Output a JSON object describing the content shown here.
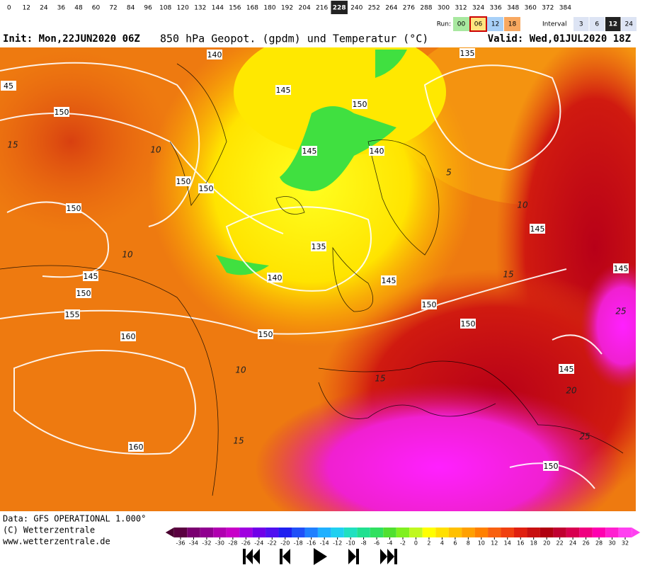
{
  "hours": {
    "items": [
      0,
      12,
      24,
      36,
      48,
      60,
      72,
      84,
      96,
      108,
      120,
      132,
      144,
      156,
      168,
      180,
      192,
      204,
      216,
      228,
      240,
      252,
      264,
      276,
      288,
      300,
      312,
      324,
      336,
      348,
      360,
      372,
      384
    ],
    "selected": 228
  },
  "run": {
    "label": "Run:",
    "options": [
      "00",
      "06",
      "12",
      "18"
    ],
    "selected": "06"
  },
  "interval": {
    "label": "Interval",
    "options": [
      3,
      6,
      12,
      24
    ],
    "selected": 12
  },
  "header": {
    "init": "Init: Mon,22JUN2020 06Z",
    "title": "850 hPa Geopot. (gpdm) und Temperatur (°C)",
    "valid": "Valid: Wed,01JUL2020 18Z"
  },
  "map": {
    "geopotential_labels": [
      "140",
      "135",
      "45",
      "145",
      "150",
      "150",
      "145",
      "140",
      "150",
      "150",
      "150",
      "145",
      "135",
      "145",
      "140",
      "145",
      "145",
      "150",
      "150",
      "155",
      "150",
      "150",
      "160",
      "145",
      "160",
      "150"
    ],
    "temperature_labels": [
      "15",
      "10",
      "5",
      "10",
      "10",
      "15",
      "25",
      "10",
      "15",
      "20",
      "25",
      "15"
    ]
  },
  "footer": {
    "data": "Data: GFS OPERATIONAL 1.000°",
    "copyright": "(C) Wetterzentrale",
    "url": "www.wetterzentrale.de"
  },
  "color_scale": {
    "ticks": [
      -36,
      -34,
      -32,
      -30,
      -28,
      -26,
      -24,
      -22,
      -20,
      -18,
      -16,
      -14,
      -12,
      -10,
      -8,
      -6,
      -4,
      -2,
      0,
      2,
      4,
      6,
      8,
      10,
      12,
      14,
      16,
      18,
      20,
      22,
      24,
      26,
      28,
      30,
      32
    ]
  }
}
